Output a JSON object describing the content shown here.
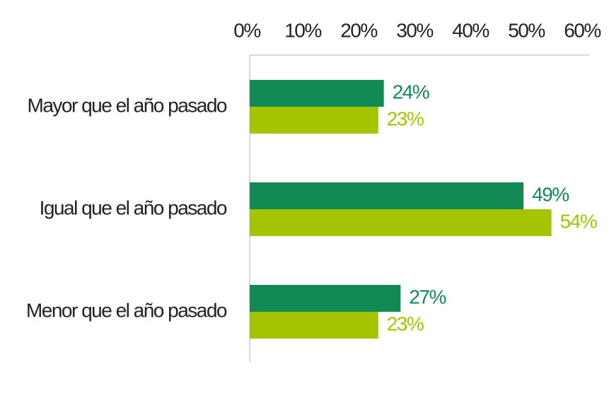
{
  "chart_data": {
    "type": "hbar",
    "categories": [
      "Mayor que el año pasado",
      "Igual que el año pasado",
      "Menor que el año pasado"
    ],
    "series": [
      {
        "color": "#128a55",
        "values": [
          24,
          49,
          27
        ],
        "value_labels": [
          "24%",
          "49%",
          "27%"
        ]
      },
      {
        "color": "#a5c400",
        "values": [
          23,
          54,
          23
        ],
        "value_labels": [
          "23%",
          "54%",
          "23%"
        ]
      }
    ],
    "xlim": [
      0,
      60
    ],
    "xticks": [
      {
        "value": 0,
        "label": "0%"
      },
      {
        "value": 10,
        "label": "10%"
      },
      {
        "value": 20,
        "label": "20%"
      },
      {
        "value": 30,
        "label": "30%"
      },
      {
        "value": 40,
        "label": "40%"
      },
      {
        "value": 50,
        "label": "50%"
      },
      {
        "value": 60,
        "label": "60%"
      }
    ]
  }
}
